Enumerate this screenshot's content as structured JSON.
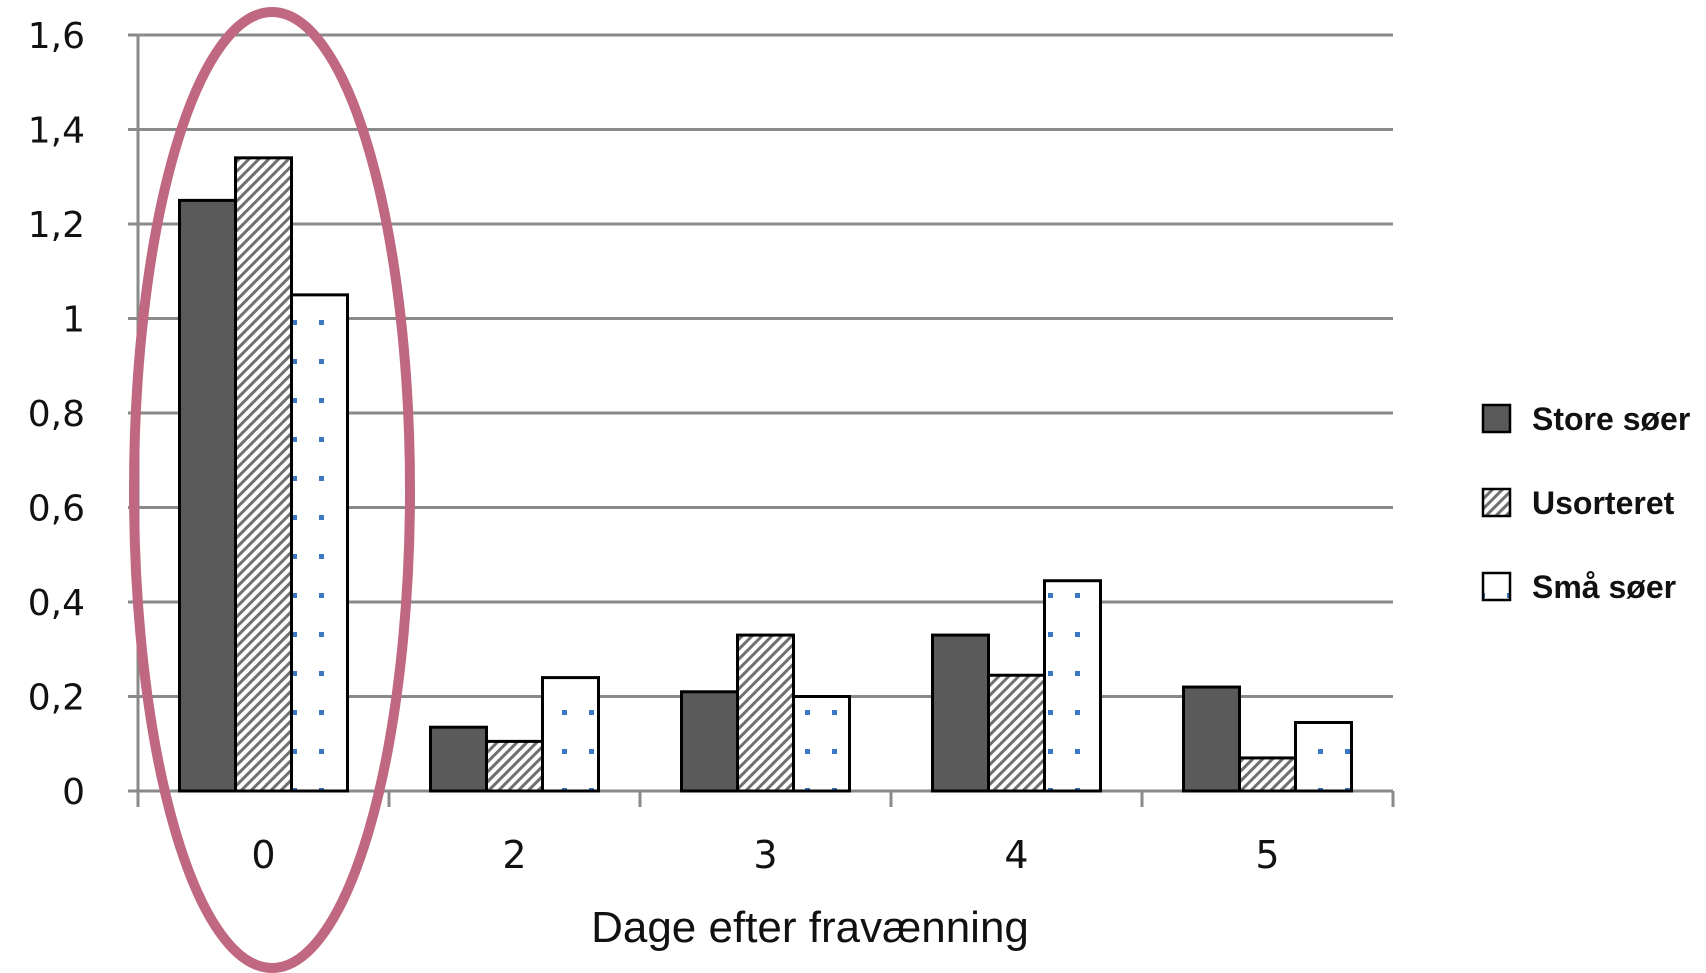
{
  "chart_data": {
    "type": "bar",
    "categories": [
      "0",
      "2",
      "3",
      "4",
      "5"
    ],
    "series": [
      {
        "name": "Store søer",
        "values": [
          1.25,
          0.135,
          0.21,
          0.33,
          0.22
        ],
        "pattern": "solid",
        "color": "#5a5a5a"
      },
      {
        "name": "Usorteret",
        "values": [
          1.34,
          0.105,
          0.33,
          0.245,
          0.07
        ],
        "pattern": "hatch",
        "color": "#707070"
      },
      {
        "name": "Små søer",
        "values": [
          1.05,
          0.24,
          0.2,
          0.445,
          0.145
        ],
        "pattern": "dots",
        "color": "#3b78c2"
      }
    ],
    "ytick_labels": [
      "0",
      "0,2",
      "0,4",
      "0,6",
      "0,8",
      "1",
      "1,2",
      "1,4",
      "1,6"
    ],
    "ylim": [
      0,
      1.6
    ],
    "title": "",
    "xlabel": "Dage efter fravænning",
    "ylabel": "",
    "grid": true,
    "legend_position": "right",
    "highlight": {
      "category": "0",
      "shape": "ellipse",
      "color": "#c06882"
    }
  }
}
